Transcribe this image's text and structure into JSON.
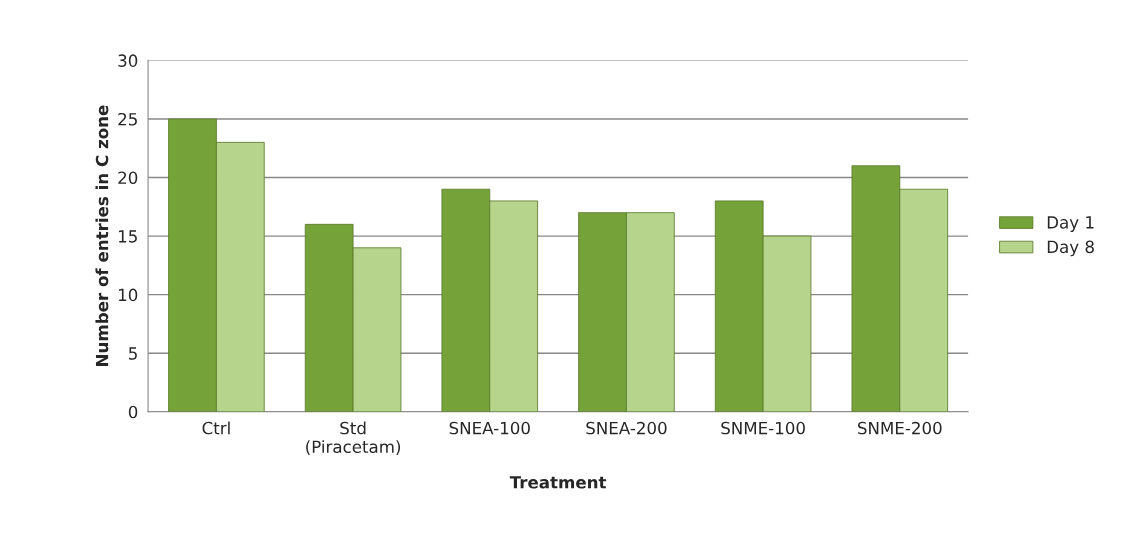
{
  "chart_data": {
    "type": "bar",
    "xlabel": "Treatment",
    "ylabel": "Number of entries in C zone",
    "categories": [
      "Ctrl",
      "Std\n(Piracetam)",
      "SNEA-100",
      "SNEA-200",
      "SNME-100",
      "SNME-200"
    ],
    "series": [
      {
        "name": "Day 1",
        "color": "#76a23a",
        "values": [
          25,
          16,
          19,
          17,
          18,
          21
        ]
      },
      {
        "name": "Day 8",
        "color": "#b6d48c",
        "values": [
          23,
          14,
          18,
          17,
          15,
          19
        ]
      }
    ],
    "ylim": [
      0,
      30
    ],
    "yticks": [
      0,
      5,
      10,
      15,
      20,
      25,
      30
    ],
    "grid": "y",
    "legend": "right"
  }
}
